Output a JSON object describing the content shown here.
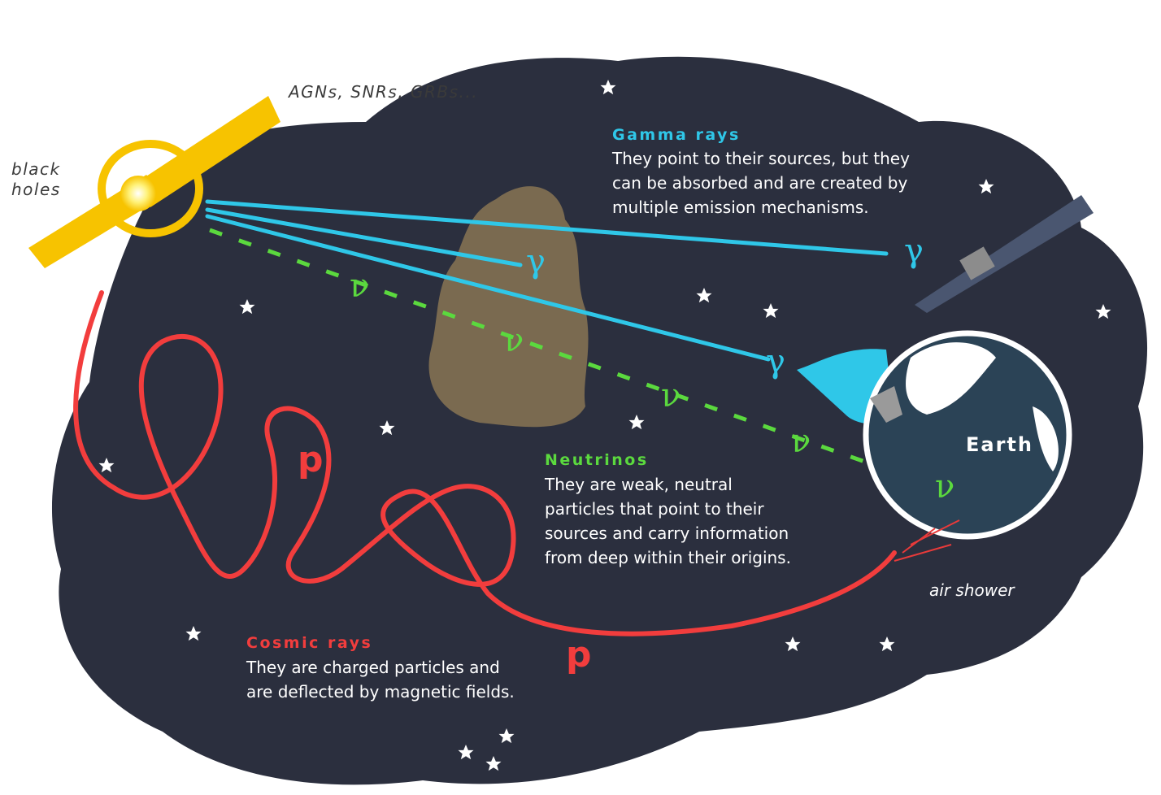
{
  "sources": {
    "label": "AGNs, SNRs, GRBs...",
    "black_holes": [
      "black",
      "holes"
    ]
  },
  "gamma_rays": {
    "title": "Gamma rays",
    "lines": [
      "They point to their sources, but they",
      "can be absorbed and are created by",
      "multiple emission mechanisms."
    ],
    "symbols": [
      "γ",
      "γ",
      "γ"
    ]
  },
  "neutrinos": {
    "title": "Neutrinos",
    "lines": [
      "They are weak, neutral",
      "particles that point to their",
      "sources and carry information",
      "from deep within their origins."
    ],
    "symbols": [
      "ν",
      "ν",
      "ν",
      "ν",
      "ν"
    ]
  },
  "cosmic_rays": {
    "title": "Cosmic rays",
    "lines": [
      "They are charged particles and",
      "are deflected by magnetic fields."
    ],
    "symbols": [
      "p",
      "p"
    ]
  },
  "earth": {
    "label": "Earth"
  },
  "air_shower": {
    "label": "air shower"
  }
}
